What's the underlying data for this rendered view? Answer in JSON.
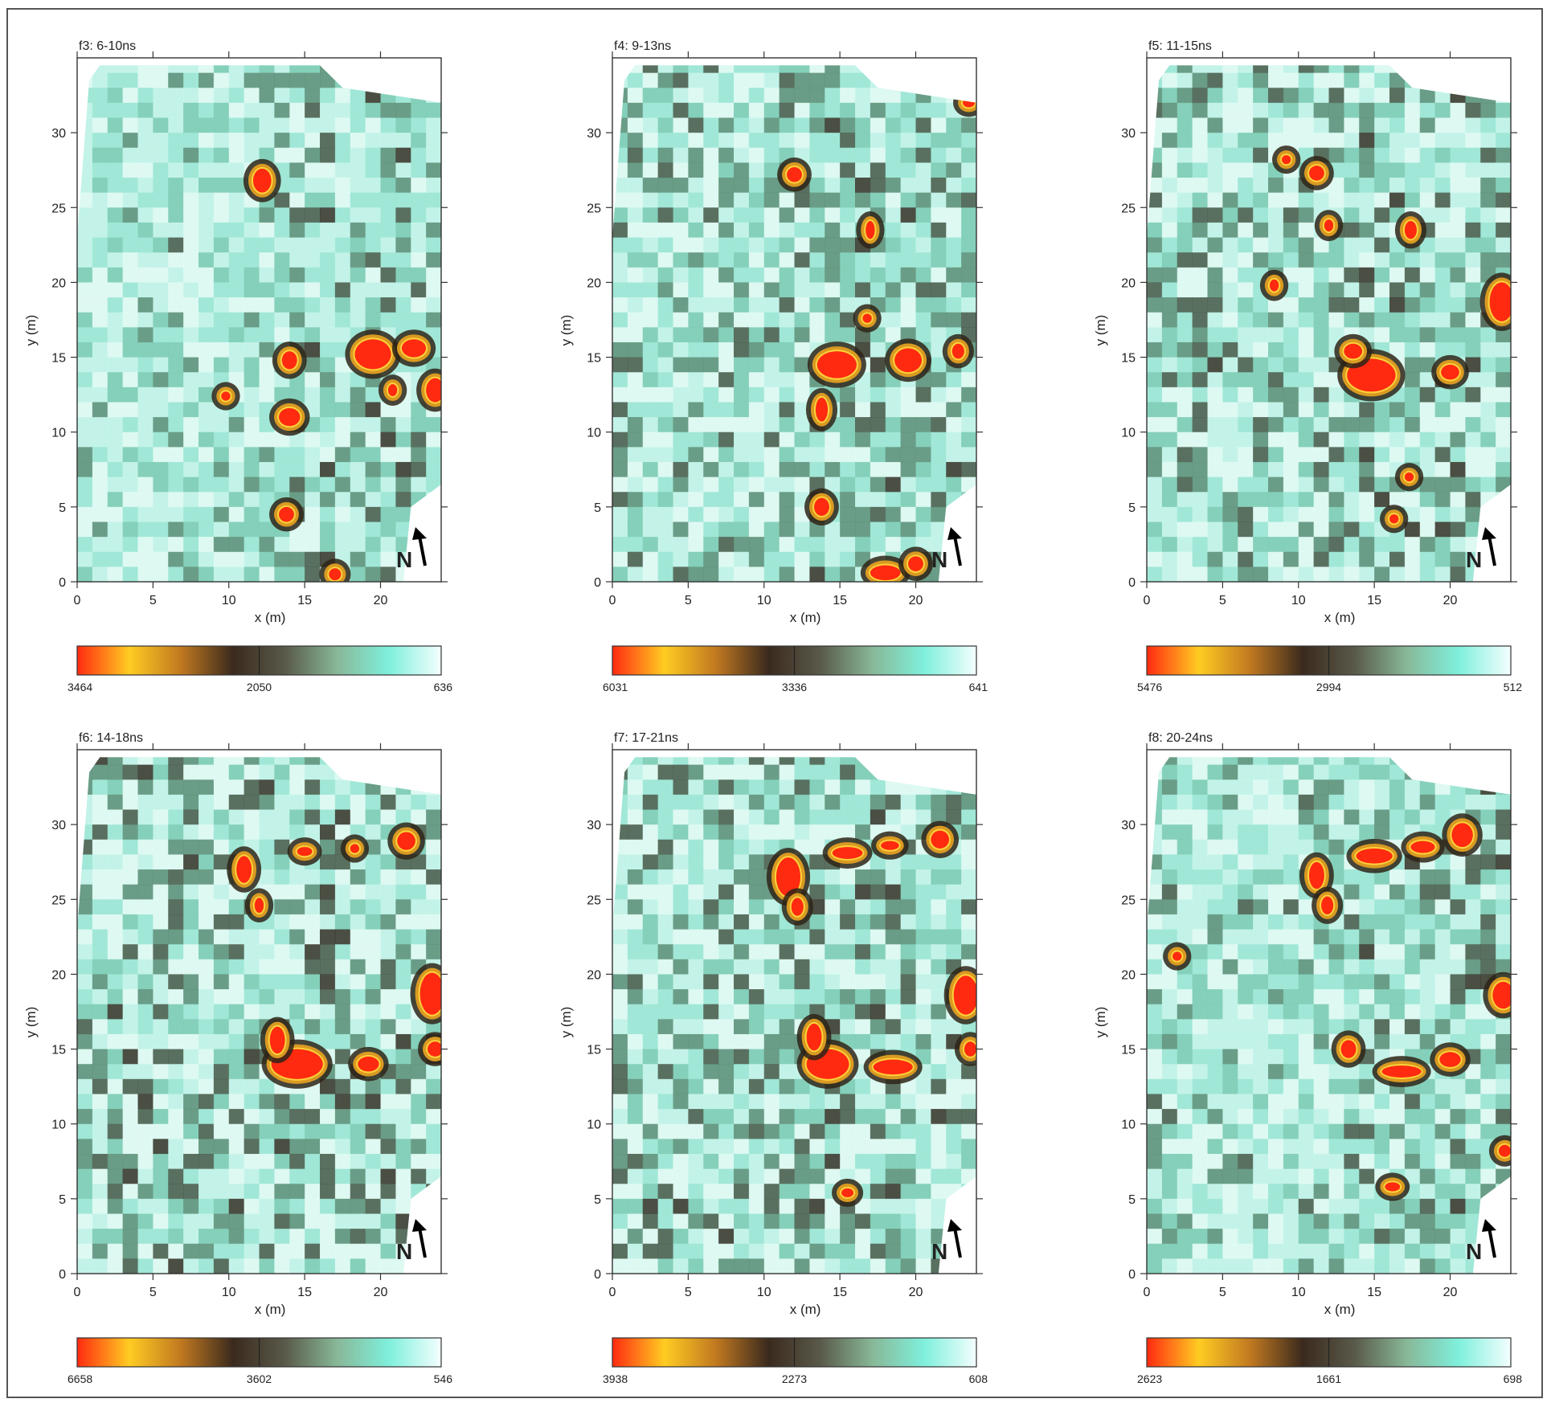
{
  "figure": {
    "colorbar_colors": [
      "#ff2a10",
      "#ffcc22",
      "#c07820",
      "#3a2a1e",
      "#5a5a4a",
      "#88b898",
      "#7ff0dc",
      "#f4fefe"
    ],
    "north_label": "N",
    "north_icon": "north-arrow-icon"
  },
  "chart_data": [
    {
      "type": "heatmap",
      "title": "f3: 6-10ns",
      "xlabel": "x (m)",
      "ylabel": "y (m)",
      "xlim": [
        0,
        24
      ],
      "ylim": [
        0,
        35
      ],
      "xticks": [
        "0",
        "5",
        "10",
        "15",
        "20"
      ],
      "yticks": [
        "0",
        "5",
        "10",
        "15",
        "20",
        "25",
        "30"
      ],
      "colorbar": {
        "min_label": "3464",
        "mid_label": "2050",
        "max_label": "636"
      },
      "anomalies": [
        {
          "x": 12.2,
          "y": 26.8,
          "rx": 0.6,
          "ry": 0.8
        },
        {
          "x": 14.0,
          "y": 14.8,
          "rx": 0.5,
          "ry": 0.6
        },
        {
          "x": 14.0,
          "y": 11.0,
          "rx": 0.7,
          "ry": 0.6
        },
        {
          "x": 19.5,
          "y": 15.2,
          "rx": 1.2,
          "ry": 1.0
        },
        {
          "x": 22.2,
          "y": 15.6,
          "rx": 0.8,
          "ry": 0.6
        },
        {
          "x": 23.6,
          "y": 12.8,
          "rx": 0.6,
          "ry": 0.8
        },
        {
          "x": 13.8,
          "y": 4.5,
          "rx": 0.5,
          "ry": 0.5
        },
        {
          "x": 17.0,
          "y": 0.5,
          "rx": 0.4,
          "ry": 0.4
        },
        {
          "x": 9.8,
          "y": 12.4,
          "rx": 0.3,
          "ry": 0.3
        },
        {
          "x": 20.8,
          "y": 12.8,
          "rx": 0.3,
          "ry": 0.4
        }
      ]
    },
    {
      "type": "heatmap",
      "title": "f4: 9-13ns",
      "xlabel": "x (m)",
      "ylabel": "y (m)",
      "xlim": [
        0,
        24
      ],
      "ylim": [
        0,
        35
      ],
      "xticks": [
        "0",
        "5",
        "10",
        "15",
        "20"
      ],
      "yticks": [
        "0",
        "5",
        "10",
        "15",
        "20",
        "25",
        "30"
      ],
      "colorbar": {
        "min_label": "6031",
        "mid_label": "3336",
        "max_label": "641"
      },
      "anomalies": [
        {
          "x": 14.8,
          "y": 14.5,
          "rx": 1.3,
          "ry": 0.9
        },
        {
          "x": 19.5,
          "y": 14.8,
          "rx": 0.9,
          "ry": 0.8
        },
        {
          "x": 13.8,
          "y": 11.5,
          "rx": 0.4,
          "ry": 0.8
        },
        {
          "x": 12.0,
          "y": 27.2,
          "rx": 0.5,
          "ry": 0.5
        },
        {
          "x": 17.0,
          "y": 23.5,
          "rx": 0.3,
          "ry": 0.6
        },
        {
          "x": 13.8,
          "y": 5.0,
          "rx": 0.5,
          "ry": 0.6
        },
        {
          "x": 18.0,
          "y": 0.6,
          "rx": 1.0,
          "ry": 0.5
        },
        {
          "x": 20.0,
          "y": 1.2,
          "rx": 0.5,
          "ry": 0.5
        },
        {
          "x": 23.5,
          "y": 32.0,
          "rx": 0.4,
          "ry": 0.3
        },
        {
          "x": 22.8,
          "y": 15.4,
          "rx": 0.4,
          "ry": 0.5
        },
        {
          "x": 16.8,
          "y": 17.6,
          "rx": 0.3,
          "ry": 0.3
        }
      ]
    },
    {
      "type": "heatmap",
      "title": "f5: 11-15ns",
      "xlabel": "x (m)",
      "ylabel": "y (m)",
      "xlim": [
        0,
        24
      ],
      "ylim": [
        0,
        35
      ],
      "xticks": [
        "0",
        "5",
        "10",
        "15",
        "20"
      ],
      "yticks": [
        "0",
        "5",
        "10",
        "15",
        "20",
        "25",
        "30"
      ],
      "colorbar": {
        "min_label": "5476",
        "mid_label": "2994",
        "max_label": "512"
      },
      "anomalies": [
        {
          "x": 14.8,
          "y": 13.8,
          "rx": 1.6,
          "ry": 1.1
        },
        {
          "x": 13.6,
          "y": 15.4,
          "rx": 0.6,
          "ry": 0.5
        },
        {
          "x": 20.0,
          "y": 14.0,
          "rx": 0.6,
          "ry": 0.5
        },
        {
          "x": 23.4,
          "y": 18.7,
          "rx": 0.8,
          "ry": 1.3
        },
        {
          "x": 17.4,
          "y": 23.5,
          "rx": 0.4,
          "ry": 0.6
        },
        {
          "x": 11.2,
          "y": 27.3,
          "rx": 0.5,
          "ry": 0.5
        },
        {
          "x": 9.2,
          "y": 28.2,
          "rx": 0.3,
          "ry": 0.3
        },
        {
          "x": 8.4,
          "y": 19.8,
          "rx": 0.3,
          "ry": 0.4
        },
        {
          "x": 12.0,
          "y": 23.8,
          "rx": 0.3,
          "ry": 0.4
        },
        {
          "x": 16.3,
          "y": 4.2,
          "rx": 0.3,
          "ry": 0.3
        },
        {
          "x": 17.3,
          "y": 7.0,
          "rx": 0.3,
          "ry": 0.3
        }
      ]
    },
    {
      "type": "heatmap",
      "title": "f6: 14-18ns",
      "xlabel": "x (m)",
      "ylabel": "y (m)",
      "xlim": [
        0,
        24
      ],
      "ylim": [
        0,
        35
      ],
      "xticks": [
        "0",
        "5",
        "10",
        "15",
        "20"
      ],
      "yticks": [
        "0",
        "5",
        "10",
        "15",
        "20",
        "25",
        "30"
      ],
      "colorbar": {
        "min_label": "6658",
        "mid_label": "3602",
        "max_label": "546"
      },
      "anomalies": [
        {
          "x": 11.0,
          "y": 27.0,
          "rx": 0.5,
          "ry": 0.9
        },
        {
          "x": 12.0,
          "y": 24.6,
          "rx": 0.3,
          "ry": 0.5
        },
        {
          "x": 15.0,
          "y": 28.2,
          "rx": 0.5,
          "ry": 0.3
        },
        {
          "x": 18.3,
          "y": 28.4,
          "rx": 0.3,
          "ry": 0.3
        },
        {
          "x": 21.7,
          "y": 28.9,
          "rx": 0.6,
          "ry": 0.6
        },
        {
          "x": 14.5,
          "y": 14.0,
          "rx": 1.7,
          "ry": 1.0
        },
        {
          "x": 13.2,
          "y": 15.6,
          "rx": 0.5,
          "ry": 0.9
        },
        {
          "x": 19.2,
          "y": 14.0,
          "rx": 0.7,
          "ry": 0.5
        },
        {
          "x": 23.4,
          "y": 18.7,
          "rx": 0.8,
          "ry": 1.4
        },
        {
          "x": 23.6,
          "y": 15.0,
          "rx": 0.5,
          "ry": 0.5
        }
      ]
    },
    {
      "type": "heatmap",
      "title": "f7: 17-21ns",
      "xlabel": "x (m)",
      "ylabel": "y (m)",
      "xlim": [
        0,
        24
      ],
      "ylim": [
        0,
        35
      ],
      "xticks": [
        "0",
        "5",
        "10",
        "15",
        "20"
      ],
      "yticks": [
        "0",
        "5",
        "10",
        "15",
        "20",
        "25",
        "30"
      ],
      "colorbar": {
        "min_label": "3938",
        "mid_label": "2273",
        "max_label": "608"
      },
      "anomalies": [
        {
          "x": 11.6,
          "y": 26.5,
          "rx": 0.8,
          "ry": 1.3
        },
        {
          "x": 12.2,
          "y": 24.5,
          "rx": 0.4,
          "ry": 0.6
        },
        {
          "x": 15.5,
          "y": 28.1,
          "rx": 1.0,
          "ry": 0.4
        },
        {
          "x": 18.3,
          "y": 28.6,
          "rx": 0.6,
          "ry": 0.3
        },
        {
          "x": 21.6,
          "y": 29.0,
          "rx": 0.6,
          "ry": 0.6
        },
        {
          "x": 14.2,
          "y": 14.0,
          "rx": 1.4,
          "ry": 1.0
        },
        {
          "x": 13.3,
          "y": 15.8,
          "rx": 0.5,
          "ry": 0.9
        },
        {
          "x": 18.5,
          "y": 13.8,
          "rx": 1.3,
          "ry": 0.5
        },
        {
          "x": 23.3,
          "y": 18.6,
          "rx": 0.8,
          "ry": 1.3
        },
        {
          "x": 23.6,
          "y": 15.0,
          "rx": 0.4,
          "ry": 0.5
        },
        {
          "x": 15.5,
          "y": 5.4,
          "rx": 0.4,
          "ry": 0.3
        }
      ]
    },
    {
      "type": "heatmap",
      "title": "f8: 20-24ns",
      "xlabel": "x (m)",
      "ylabel": "y (m)",
      "xlim": [
        0,
        24
      ],
      "ylim": [
        0,
        35
      ],
      "xticks": [
        "0",
        "5",
        "10",
        "15",
        "20"
      ],
      "yticks": [
        "0",
        "5",
        "10",
        "15",
        "20",
        "25",
        "30"
      ],
      "colorbar": {
        "min_label": "2623",
        "mid_label": "1661",
        "max_label": "698"
      },
      "anomalies": [
        {
          "x": 11.2,
          "y": 26.6,
          "rx": 0.5,
          "ry": 0.9
        },
        {
          "x": 11.9,
          "y": 24.6,
          "rx": 0.4,
          "ry": 0.6
        },
        {
          "x": 15.0,
          "y": 27.9,
          "rx": 1.2,
          "ry": 0.5
        },
        {
          "x": 18.2,
          "y": 28.5,
          "rx": 0.8,
          "ry": 0.4
        },
        {
          "x": 20.8,
          "y": 29.3,
          "rx": 0.7,
          "ry": 0.8
        },
        {
          "x": 23.5,
          "y": 18.6,
          "rx": 0.7,
          "ry": 0.9
        },
        {
          "x": 13.3,
          "y": 15.0,
          "rx": 0.5,
          "ry": 0.6
        },
        {
          "x": 16.8,
          "y": 13.5,
          "rx": 1.3,
          "ry": 0.4
        },
        {
          "x": 20.0,
          "y": 14.3,
          "rx": 0.7,
          "ry": 0.5
        },
        {
          "x": 2.0,
          "y": 21.2,
          "rx": 0.3,
          "ry": 0.3
        },
        {
          "x": 23.6,
          "y": 8.2,
          "rx": 0.4,
          "ry": 0.4
        },
        {
          "x": 16.2,
          "y": 5.8,
          "rx": 0.5,
          "ry": 0.3
        }
      ]
    }
  ]
}
